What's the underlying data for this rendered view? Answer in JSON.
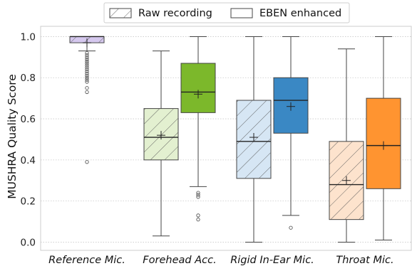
{
  "chart_data": {
    "type": "boxplot",
    "ylabel": "MUSHRA Quality Score",
    "xlabel": "",
    "ylim": [
      -0.04,
      1.05
    ],
    "yticks": [
      0.0,
      0.2,
      0.4,
      0.6,
      0.8,
      1.0
    ],
    "ytick_labels": [
      "0.0",
      "0.2",
      "0.4",
      "0.6",
      "0.8",
      "1.0"
    ],
    "grid": "horizontal, dotted",
    "legend_position": "top-center, outside",
    "categories": [
      "Reference Mic.",
      "Forehead Acc.",
      "Rigid In-Ear Mic.",
      "Throat Mic."
    ],
    "series": [
      {
        "name": "Raw recording",
        "hatch": true,
        "boxes": [
          {
            "category": "Reference Mic.",
            "whisker_low": 0.93,
            "q1": 0.97,
            "median": 1.0,
            "q3": 1.0,
            "whisker_high": 1.0,
            "mean": 0.97,
            "outliers": [
              0.92,
              0.91,
              0.9,
              0.89,
              0.88,
              0.87,
              0.86,
              0.85,
              0.84,
              0.83,
              0.82,
              0.81,
              0.8,
              0.79,
              0.78,
              0.75,
              0.73,
              0.39
            ],
            "color": "#d5c8ee"
          },
          {
            "category": "Forehead Acc.",
            "whisker_low": 0.03,
            "q1": 0.4,
            "median": 0.51,
            "q3": 0.65,
            "whisker_high": 0.93,
            "mean": 0.52,
            "outliers": [],
            "color": "#e3f0d0"
          },
          {
            "category": "Rigid In-Ear Mic.",
            "whisker_low": 0.0,
            "q1": 0.31,
            "median": 0.49,
            "q3": 0.69,
            "whisker_high": 1.0,
            "mean": 0.51,
            "outliers": [],
            "color": "#d6e6f4"
          },
          {
            "category": "Throat Mic.",
            "whisker_low": 0.0,
            "q1": 0.11,
            "median": 0.28,
            "q3": 0.49,
            "whisker_high": 0.94,
            "mean": 0.3,
            "outliers": [],
            "color": "#fde3cd"
          }
        ]
      },
      {
        "name": "EBEN enhanced",
        "hatch": false,
        "boxes": [
          {
            "category": "Forehead Acc.",
            "whisker_low": 0.27,
            "q1": 0.63,
            "median": 0.73,
            "q3": 0.87,
            "whisker_high": 1.0,
            "mean": 0.72,
            "outliers": [
              0.24,
              0.23,
              0.22,
              0.13,
              0.11
            ],
            "color": "#7cb82b"
          },
          {
            "category": "Rigid In-Ear Mic.",
            "whisker_low": 0.13,
            "q1": 0.53,
            "median": 0.69,
            "q3": 0.8,
            "whisker_high": 1.0,
            "mean": 0.66,
            "outliers": [
              0.07
            ],
            "color": "#3a88c4"
          },
          {
            "category": "Throat Mic.",
            "whisker_low": 0.01,
            "q1": 0.26,
            "median": 0.47,
            "q3": 0.7,
            "whisker_high": 1.0,
            "mean": 0.47,
            "outliers": [],
            "color": "#ff9430"
          }
        ]
      }
    ]
  }
}
